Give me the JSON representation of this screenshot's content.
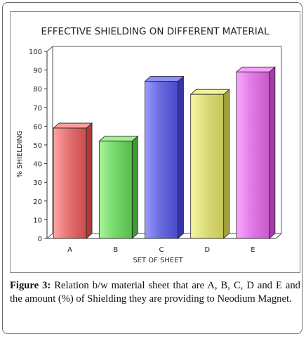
{
  "chart_data": {
    "type": "bar",
    "title": "EFFECTIVE SHIELDING ON DIFFERENT MATERIAL",
    "xlabel": "SET OF SHEET",
    "ylabel": "% SHIELDING",
    "categories": [
      "A",
      "B",
      "C",
      "D",
      "E"
    ],
    "values": [
      59,
      52,
      84,
      77,
      89
    ],
    "ylim": [
      0,
      100
    ],
    "yticks": [
      "0",
      "10",
      "20",
      "30",
      "40",
      "50",
      "60",
      "70",
      "80",
      "90",
      "100"
    ],
    "grid": false,
    "legend": "none",
    "colors": [
      {
        "front": "#e57373",
        "light": "#ffa5a5",
        "dark": "#c94b4b",
        "side": "#b03a3a",
        "top": "#ff9e9e"
      },
      {
        "front": "#7ad86e",
        "light": "#a8f59c",
        "dark": "#55bb48",
        "side": "#3f9a34",
        "top": "#9ff192"
      },
      {
        "front": "#6b6be0",
        "light": "#9a9aff",
        "dark": "#4a4acb",
        "side": "#3535a8",
        "top": "#8f8ff8"
      },
      {
        "front": "#dcdc78",
        "light": "#f5f5a6",
        "dark": "#c6c65a",
        "side": "#a3a33d",
        "top": "#f1f19a"
      },
      {
        "front": "#e27ae6",
        "light": "#fba6ff",
        "dark": "#c759cb",
        "side": "#a03fa4",
        "top": "#f7a0fa"
      }
    ]
  },
  "caption": {
    "label": "Figure 3:",
    "text": " Relation b/w material sheet that are A, B, C, D and E and the amount (%) of Shielding they are providing to Neodium Magnet."
  }
}
